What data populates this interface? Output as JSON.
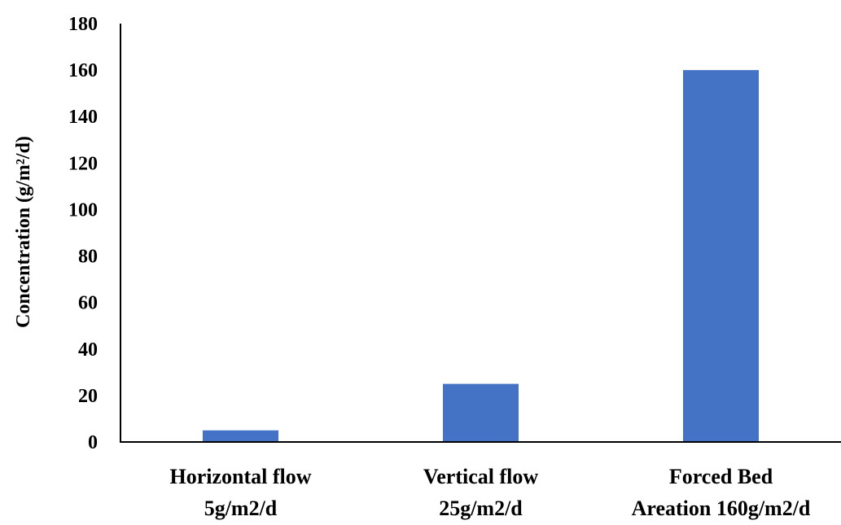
{
  "chart_data": {
    "type": "bar",
    "categories": [
      [
        "Horizontal flow",
        "5g/m2/d"
      ],
      [
        "Vertical flow",
        "25g/m2/d"
      ],
      [
        "Forced Bed",
        "Areation 160g/m2/d"
      ]
    ],
    "values": [
      5,
      25,
      160
    ],
    "ylabel": "Concentration  (g/m²/d)",
    "ylim": [
      0,
      180
    ],
    "yticks": [
      0,
      20,
      40,
      60,
      80,
      100,
      120,
      140,
      160,
      180
    ],
    "grid": false,
    "legend": "none",
    "bar_color": "#4472C4"
  }
}
